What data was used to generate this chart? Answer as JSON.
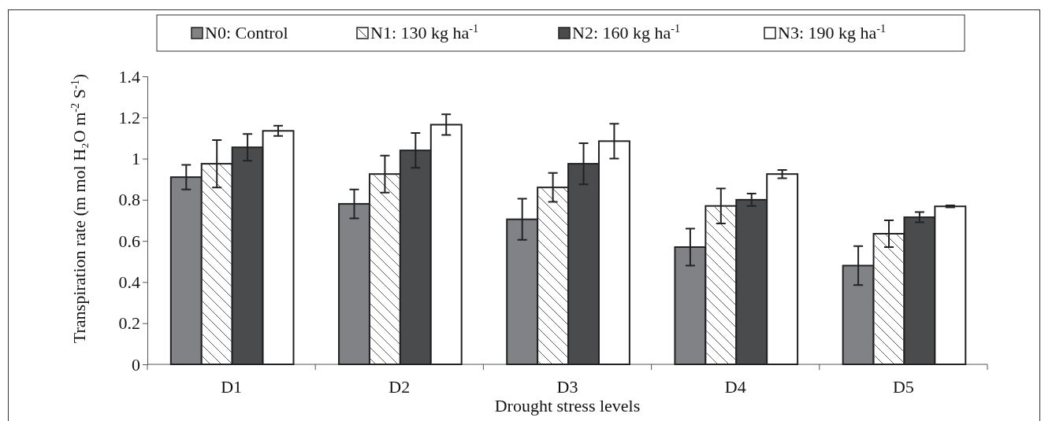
{
  "chart_data": {
    "type": "bar",
    "xlabel": "Drought stress levels",
    "ylabel": "Transpiration rate (m mol H₂O  m$^{-2}$ S$^{-1}$)",
    "categories": [
      "D1",
      "D2",
      "D3",
      "D4",
      "D5"
    ],
    "series": [
      {
        "name": "N0: Control",
        "color": "#808285",
        "values": [
          0.91,
          0.78,
          0.705,
          0.57,
          0.48
        ],
        "errors": [
          0.06,
          0.07,
          0.1,
          0.09,
          0.095
        ]
      },
      {
        "name": "N1: 130 kg ha$^{-1}$",
        "color": "#ffffff",
        "values": [
          0.975,
          0.925,
          0.86,
          0.77,
          0.635
        ],
        "errors": [
          0.115,
          0.09,
          0.07,
          0.085,
          0.065
        ]
      },
      {
        "name": "N2: 160 kg ha$^{-1}$",
        "color": "#4a4b4d",
        "values": [
          1.055,
          1.04,
          0.975,
          0.8,
          0.715
        ],
        "errors": [
          0.065,
          0.085,
          0.1,
          0.03,
          0.025
        ]
      },
      {
        "name": "N3: 190 kg ha$^{-1}$",
        "color": "#ffffff",
        "values": [
          1.135,
          1.165,
          1.085,
          0.925,
          0.768
        ],
        "errors": [
          0.025,
          0.05,
          0.085,
          0.02,
          0.005
        ]
      }
    ],
    "ylim": [
      0,
      1.4
    ],
    "yticks": [
      0,
      0.2,
      0.4,
      0.6,
      0.8,
      1,
      1.2,
      1.4
    ],
    "grid": false,
    "legend": "top"
  }
}
